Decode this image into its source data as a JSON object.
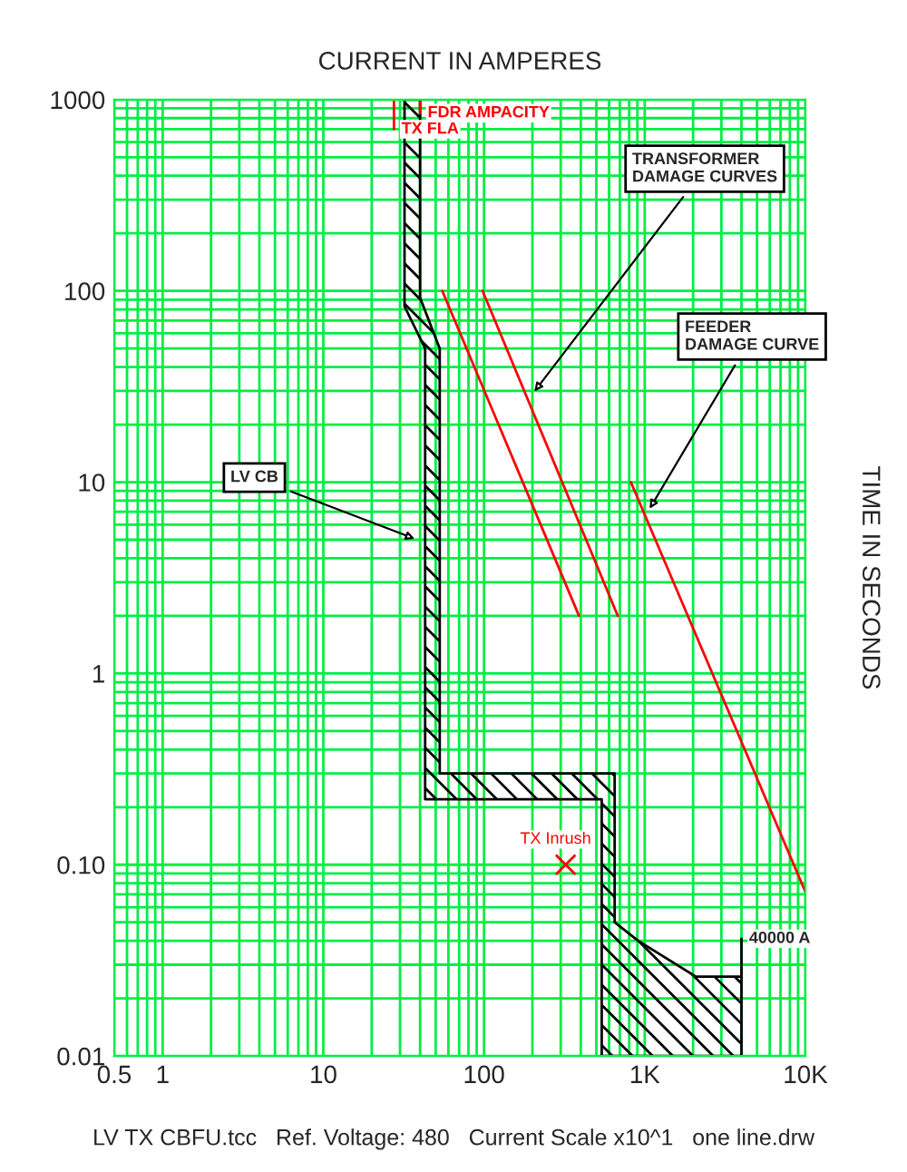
{
  "chart_data": {
    "type": "line",
    "xlabel": "CURRENT IN AMPERES",
    "ylabel": "TIME IN SECONDS",
    "log": "xy",
    "xlim": [
      0.5,
      10000
    ],
    "ylim": [
      0.01,
      1000
    ],
    "xticks": [
      0.5,
      1,
      10,
      100,
      {
        "value": 1000,
        "label": "1K"
      },
      {
        "value": 10000,
        "label": "10K"
      }
    ],
    "yticks": [
      0.01,
      {
        "value": 0.1,
        "label": "0.10"
      },
      1,
      10,
      100,
      1000
    ],
    "grid": true,
    "legend": false,
    "series": [
      {
        "type": "area",
        "color": "#000000",
        "x": [
          32,
          32,
          43,
          43,
          540,
          540,
          4000,
          4000,
          4000,
          2080,
          910,
          650,
          650,
          53,
          53,
          40,
          40
        ],
        "values": [
          1000,
          83,
          50,
          0.22,
          0.22,
          0.01,
          0.01,
          0.041,
          0.026,
          0.026,
          0.04,
          0.05,
          0.3,
          0.3,
          50,
          92,
          1000
        ]
      },
      {
        "color": "#ff0000",
        "x": [
          55,
          390
        ],
        "values": [
          100,
          2
        ]
      },
      {
        "color": "#ff0000",
        "x": [
          98,
          680
        ],
        "values": [
          100,
          2
        ]
      },
      {
        "color": "#ff0000",
        "x": [
          820,
          10000
        ],
        "values": [
          10,
          0.072
        ]
      },
      {
        "name": "TX FLA",
        "color": "#ff0000",
        "x": [
          27.5,
          27.5
        ],
        "values": [
          1000,
          700
        ]
      },
      {
        "name": "FDR AMPACITY",
        "color": "#ff0000",
        "x": [
          40,
          40
        ],
        "values": [
          1000,
          850
        ]
      },
      {
        "name": "TX Inrush",
        "type": "scatter",
        "marker": "cross",
        "color": "#ff0000",
        "x": [
          322
        ],
        "values": [
          0.1
        ]
      }
    ],
    "annotations": [
      {
        "text": "LV CB",
        "x": 39.6,
        "y": 4.95
      },
      {
        "text": "TRANSFORMER\nDAMAGE CURVES",
        "x": 197,
        "y": 28.4
      },
      {
        "text": "FEEDER\nDAMAGE CURVE",
        "x": 1034,
        "y": 6.9
      },
      {
        "text": "40000 A",
        "x": 4000,
        "y": 0.041
      },
      "LV TX CBFU.tcc   Ref. Voltage: 480   Current Scale x10^1   one line.drw"
    ]
  }
}
